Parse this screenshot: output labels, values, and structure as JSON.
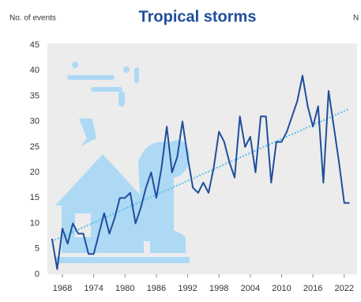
{
  "chart_data": {
    "type": "line",
    "title": "Tropical storms",
    "ylabel": "No. of events",
    "y2label": "N",
    "x": [
      1966,
      1967,
      1968,
      1969,
      1970,
      1971,
      1972,
      1973,
      1974,
      1975,
      1976,
      1977,
      1978,
      1979,
      1980,
      1981,
      1982,
      1983,
      1984,
      1985,
      1986,
      1987,
      1988,
      1989,
      1990,
      1991,
      1992,
      1993,
      1994,
      1995,
      1996,
      1997,
      1998,
      1999,
      2000,
      2001,
      2002,
      2003,
      2004,
      2005,
      2006,
      2007,
      2008,
      2009,
      2010,
      2011,
      2012,
      2013,
      2014,
      2015,
      2016,
      2017,
      2018,
      2019,
      2020,
      2021,
      2022,
      2023
    ],
    "series": [
      {
        "name": "Tropical storms",
        "color": "#1f4e9c",
        "values": [
          7,
          1,
          9,
          6,
          10,
          8,
          8,
          4,
          4,
          8,
          12,
          8,
          11,
          15,
          15,
          16,
          10,
          13,
          17,
          20,
          15,
          21,
          29,
          20,
          23,
          30,
          23,
          17,
          16,
          18,
          16,
          21,
          28,
          26,
          22,
          19,
          31,
          25,
          27,
          20,
          31,
          31,
          18,
          26,
          26,
          28,
          31,
          34,
          39,
          33,
          29,
          33,
          18,
          36,
          29,
          22,
          14,
          14
        ]
      }
    ],
    "trend": {
      "color": "#5bc0eb",
      "x": [
        1966,
        2023
      ],
      "values": [
        6.5,
        32.5
      ]
    },
    "xlim": [
      1965.5,
      2024
    ],
    "xticks": [
      1968,
      1974,
      1980,
      1986,
      1992,
      1998,
      2004,
      2010,
      2016,
      2022
    ],
    "ylim": [
      0,
      45
    ],
    "yticks": [
      0,
      5,
      10,
      15,
      20,
      25,
      30,
      35,
      40,
      45
    ],
    "grid": false
  }
}
